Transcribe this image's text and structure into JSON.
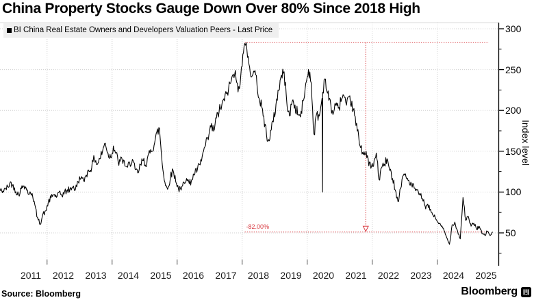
{
  "title": "China Property Stocks Gauge Down Over 80% Since 2018 High",
  "legend": {
    "label": "BI China Real Estate Owners and Developers Valuation Peers - Last Price",
    "swatch_color": "#000000"
  },
  "source": "Source: Bloomberg",
  "brand": {
    "name": "Bloomberg",
    "logo_icon": "bloomberg-mark"
  },
  "colors": {
    "line": "#000000",
    "annotation_red": "#d8383f",
    "grid": "#cfcfcf",
    "plot_border": "#d9d9d9",
    "legend_bg": "#efefef",
    "axis": "#000000"
  },
  "chart_data": {
    "type": "line",
    "title": "China Property Stocks Gauge Down Over 80% Since 2018 High",
    "ylabel": "Index level",
    "xlabel": "",
    "grid": true,
    "legend_position": "top-left",
    "y_ticks": [
      50,
      100,
      150,
      200,
      250,
      300
    ],
    "y_minor_ticks": [
      25,
      75,
      125,
      175,
      225,
      275
    ],
    "ylim": [
      12,
      307
    ],
    "x_labels": [
      "2011",
      "2012",
      "2013",
      "2014",
      "2015",
      "2016",
      "2017",
      "2018",
      "2019",
      "2020",
      "2021",
      "2022",
      "2023",
      "2024",
      "2025"
    ],
    "x_gridline_years": [
      2012,
      2014,
      2016,
      2018,
      2020,
      2022,
      2024
    ],
    "xlim": [
      2010.54,
      2025.9
    ],
    "series": [
      {
        "name": "BI China Real Estate Owners and Developers Valuation Peers - Last Price",
        "color": "#000000",
        "start_year_decimal": 2010.54,
        "step_years_between_points": 0.0833,
        "values": [
          103,
          100,
          104,
          106,
          112,
          108,
          101,
          97,
          104,
          109,
          103,
          97,
          99,
          84,
          68,
          61,
          73,
          76,
          88,
          93,
          97,
          94,
          99,
          96,
          100,
          102,
          103,
          107,
          103,
          113,
          118,
          113,
          122,
          126,
          131,
          142,
          134,
          141,
          150,
          161,
          147,
          143,
          156,
          147,
          134,
          141,
          137,
          129,
          135,
          140,
          127,
          123,
          133,
          139,
          133,
          145,
          151,
          158,
          172,
          178,
          135,
          112,
          103,
          118,
          127,
          114,
          104,
          102,
          112,
          118,
          110,
          116,
          122,
          128,
          133,
          147,
          157,
          165,
          180,
          175,
          190,
          199,
          206,
          213,
          222,
          232,
          242,
          251,
          221,
          244,
          270,
          283,
          258,
          240,
          249,
          233,
          212,
          200,
          182,
          161,
          174,
          186,
          207,
          226,
          243,
          246,
          210,
          192,
          213,
          205,
          196,
          192,
          210,
          232,
          250,
          234,
          170,
          195,
          193,
          215,
          241,
          220,
          211,
          195,
          208,
          201,
          213,
          218,
          204,
          215,
          209,
          193,
          175,
          158,
          150,
          146,
          140,
          130,
          132,
          148,
          115,
          130,
          134,
          140,
          126,
          118,
          104,
          88,
          105,
          122,
          118,
          114,
          109,
          105,
          101,
          97,
          93,
          82,
          84,
          78,
          72,
          67,
          62,
          58,
          53,
          44,
          36,
          60,
          63,
          52,
          43,
          93,
          66,
          69,
          58,
          62,
          55,
          58,
          49,
          47,
          52,
          47,
          51
        ],
        "one_day_spikes": [
          {
            "year_decimal": 2020.47,
            "value": 100
          }
        ]
      }
    ],
    "annotations": {
      "drawdown_label": "-82.00%",
      "high_value": 283,
      "high_year_decimal": 2018.08,
      "drawdown_line_value": 51,
      "vertical_marker_year_decimal": 2021.8,
      "color": "#d8383f",
      "style": "dotted"
    }
  }
}
